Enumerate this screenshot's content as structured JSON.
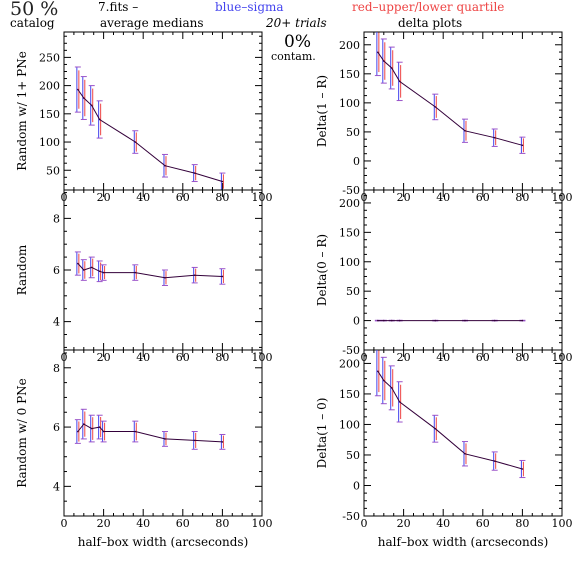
{
  "header": {
    "percent": "50 %",
    "catalog": "catalog",
    "file": "7.fits  –",
    "medians": "average medians",
    "blue": "blue–sigma",
    "red": "red–upper/lower quartile",
    "trials": "20+ trials",
    "delta": "delta plots",
    "contam_pct": "0%",
    "contam": "contam.",
    "colors": {
      "black": "#000000",
      "blue": "#4444ee",
      "red": "#ee4444",
      "purple": "#9a52c8",
      "line": "#33003a"
    }
  },
  "chart_data": [
    {
      "type": "line",
      "name": "random-1plus",
      "ylabel": "Random w/ 1+ PNe",
      "xlabel": "",
      "xlim": [
        0,
        100
      ],
      "ylim": [
        15,
        295
      ],
      "xticks": [
        0,
        20,
        40,
        60,
        80,
        100
      ],
      "yticks": [
        50,
        100,
        150,
        200,
        250
      ],
      "x": [
        7,
        10,
        14,
        18,
        36,
        51,
        66,
        80
      ],
      "y": [
        193,
        178,
        165,
        140,
        100,
        58,
        45,
        30
      ],
      "err_lo": [
        40,
        38,
        35,
        33,
        20,
        20,
        15,
        15
      ],
      "err_hi": [
        40,
        38,
        35,
        33,
        20,
        20,
        15,
        15
      ]
    },
    {
      "type": "line",
      "name": "delta-1-R",
      "ylabel": "Delta(1 – R)",
      "xlabel": "",
      "xlim": [
        0,
        100
      ],
      "ylim": [
        -50,
        222
      ],
      "xticks": [
        0,
        20,
        40,
        60,
        80,
        100
      ],
      "yticks": [
        -50,
        0,
        50,
        100,
        150,
        200
      ],
      "x": [
        7,
        10,
        14,
        18,
        36,
        51,
        66,
        80
      ],
      "y": [
        187,
        172,
        160,
        137,
        93,
        52,
        40,
        27
      ],
      "err_lo": [
        40,
        38,
        36,
        33,
        22,
        20,
        15,
        14
      ],
      "err_hi": [
        40,
        38,
        36,
        33,
        22,
        20,
        15,
        14
      ]
    },
    {
      "type": "line",
      "name": "random",
      "ylabel": "Random",
      "xlabel": "",
      "xlim": [
        0,
        100
      ],
      "ylim": [
        2.9,
        9.1
      ],
      "xticks": [
        0,
        20,
        40,
        60,
        80,
        100
      ],
      "yticks": [
        4,
        6,
        8
      ],
      "x": [
        7,
        10,
        14,
        18,
        20,
        36,
        51,
        66,
        80
      ],
      "y": [
        6.25,
        6.0,
        6.1,
        5.95,
        5.9,
        5.9,
        5.7,
        5.8,
        5.75
      ],
      "err_lo": [
        0.45,
        0.4,
        0.4,
        0.4,
        0.3,
        0.3,
        0.3,
        0.3,
        0.3
      ],
      "err_hi": [
        0.45,
        0.4,
        0.4,
        0.4,
        0.3,
        0.3,
        0.3,
        0.3,
        0.3
      ]
    },
    {
      "type": "line",
      "name": "delta-0-R",
      "ylabel": "Delta(0 – R)",
      "xlabel": "",
      "xlim": [
        0,
        100
      ],
      "ylim": [
        -50,
        222
      ],
      "xticks": [
        0,
        20,
        40,
        60,
        80,
        100
      ],
      "yticks": [
        -50,
        0,
        50,
        100,
        150,
        200
      ],
      "x": [
        7,
        10,
        14,
        18,
        36,
        51,
        66,
        80
      ],
      "y": [
        0,
        0,
        0,
        0,
        0,
        0,
        0,
        0
      ],
      "err_lo": [
        0.5,
        0.5,
        0.5,
        0.5,
        0.5,
        0.5,
        0.5,
        0.5
      ],
      "err_hi": [
        0.5,
        0.5,
        0.5,
        0.5,
        0.5,
        0.5,
        0.5,
        0.5
      ]
    },
    {
      "type": "line",
      "name": "random-0",
      "ylabel": "Random w/ 0 PNe",
      "xlabel": "half–box width (arcseconds)",
      "xlim": [
        0,
        100
      ],
      "ylim": [
        3.0,
        8.6
      ],
      "xticks": [
        0,
        20,
        40,
        60,
        80,
        100
      ],
      "yticks": [
        4,
        6,
        8
      ],
      "x": [
        7,
        10,
        14,
        18,
        20,
        36,
        51,
        66,
        80
      ],
      "y": [
        5.85,
        6.1,
        5.95,
        6.0,
        5.85,
        5.85,
        5.6,
        5.55,
        5.5
      ],
      "err_lo": [
        0.4,
        0.5,
        0.45,
        0.4,
        0.35,
        0.35,
        0.25,
        0.3,
        0.25
      ],
      "err_hi": [
        0.4,
        0.5,
        0.45,
        0.4,
        0.35,
        0.35,
        0.25,
        0.3,
        0.25
      ]
    },
    {
      "type": "line",
      "name": "delta-1-0",
      "ylabel": "Delta(1 – 0)",
      "xlabel": "half–box width (arcseconds)",
      "xlim": [
        0,
        100
      ],
      "ylim": [
        -50,
        222
      ],
      "xticks": [
        0,
        20,
        40,
        60,
        80,
        100
      ],
      "yticks": [
        -50,
        0,
        50,
        100,
        150,
        200
      ],
      "x": [
        7,
        10,
        14,
        18,
        36,
        51,
        66,
        80
      ],
      "y": [
        187,
        172,
        160,
        137,
        93,
        52,
        40,
        27
      ],
      "err_lo": [
        40,
        38,
        36,
        33,
        22,
        20,
        15,
        14
      ],
      "err_hi": [
        40,
        38,
        36,
        33,
        22,
        20,
        15,
        14
      ]
    }
  ]
}
